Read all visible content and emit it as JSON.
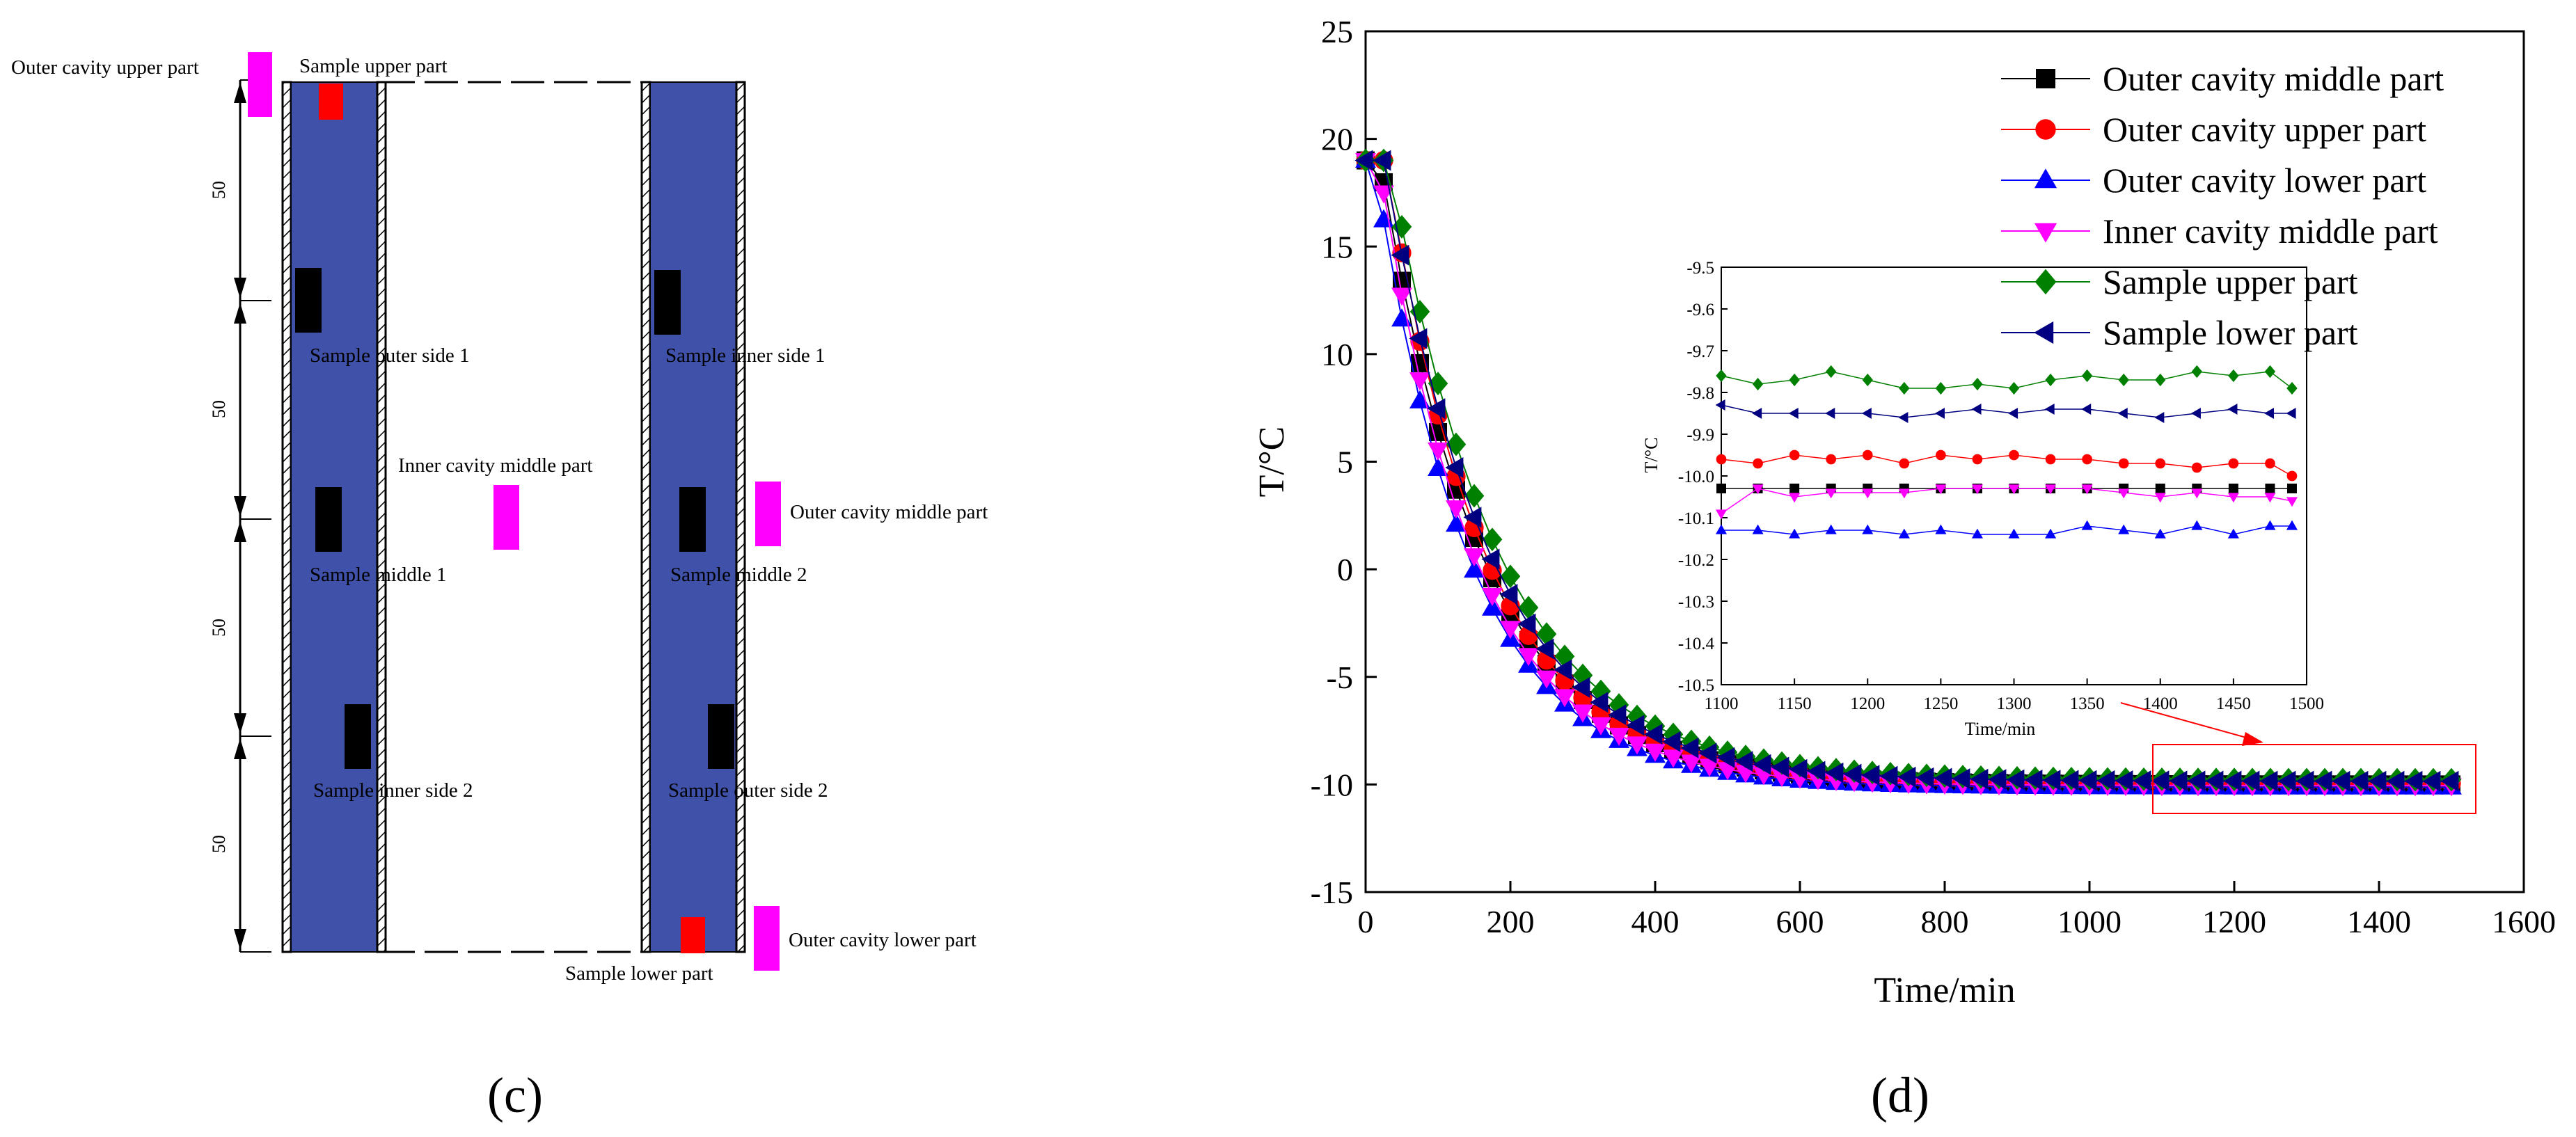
{
  "panel_c": {
    "caption": "(c)",
    "dim_labels": [
      "50",
      "50",
      "50",
      "50"
    ],
    "labels": {
      "outer_upper": "Outer cavity upper part",
      "sample_upper": "Sample upper part",
      "sample_outer_1": "Sample outer side 1",
      "sample_inner_1": "Sample inner side 1",
      "inner_middle": "Inner cavity middle part",
      "outer_middle": "Outer cavity middle part",
      "sample_middle_1": "Sample middle 1",
      "sample_middle_2": "Sample middle 2",
      "sample_inner_2": "Sample inner side 2",
      "sample_outer_2": "Sample outer side 2",
      "outer_lower": "Outer cavity lower part",
      "sample_lower": "Sample lower part"
    },
    "colors": {
      "sample_bar": "#3F51A8",
      "marker_magenta": "#FF00FF",
      "marker_red": "#FF0000",
      "sensor_black": "#000000"
    }
  },
  "panel_d": {
    "caption": "(d)"
  },
  "chart_data": [
    {
      "type": "line",
      "title": "",
      "xlabel": "Time/min",
      "ylabel": "T/°C",
      "xlim": [
        0,
        1600
      ],
      "ylim": [
        -15,
        25
      ],
      "xticks": [
        0,
        200,
        400,
        600,
        800,
        1000,
        1200,
        1400,
        1600
      ],
      "yticks": [
        -15,
        -10,
        -5,
        0,
        5,
        10,
        15,
        20,
        25
      ],
      "legend_position": "top-right",
      "x_step": 25,
      "x_max": 1500,
      "series": [
        {
          "name": "Outer cavity middle part",
          "color": "#000000",
          "marker": "square",
          "T0": 19.0,
          "Tinf": -10.0,
          "tau": 140,
          "lag": 20
        },
        {
          "name": "Outer cavity upper part",
          "color": "#FF0000",
          "marker": "circle",
          "T0": 19.0,
          "Tinf": -9.95,
          "tau": 137,
          "lag": 28
        },
        {
          "name": "Outer cavity lower part",
          "color": "#0000FF",
          "marker": "triangle-up",
          "T0": 19.0,
          "Tinf": -10.13,
          "tau": 130,
          "lag": 12
        },
        {
          "name": "Inner cavity middle part",
          "color": "#FF00FF",
          "marker": "triangle-down",
          "T0": 19.0,
          "Tinf": -10.05,
          "tau": 132,
          "lag": 18
        },
        {
          "name": "Sample upper part",
          "color": "#008000",
          "marker": "diamond",
          "T0": 19.0,
          "Tinf": -9.78,
          "tau": 150,
          "lag": 33
        },
        {
          "name": "Sample lower part",
          "color": "#000080",
          "marker": "triangle-left",
          "T0": 19.0,
          "Tinf": -9.85,
          "tau": 145,
          "lag": 26
        }
      ]
    },
    {
      "type": "line",
      "title": "",
      "xlabel": "Time/min",
      "ylabel": "T/°C",
      "xlim": [
        1100,
        1500
      ],
      "ylim": [
        -10.5,
        -9.5
      ],
      "xticks": [
        1100,
        1150,
        1200,
        1250,
        1300,
        1350,
        1400,
        1450,
        1500
      ],
      "yticks": [
        -10.5,
        -10.4,
        -10.3,
        -10.2,
        -10.1,
        -10.0,
        -9.9,
        -9.8,
        -9.7,
        -9.6,
        -9.5
      ],
      "x": [
        1100,
        1125,
        1150,
        1175,
        1200,
        1225,
        1250,
        1275,
        1300,
        1325,
        1350,
        1375,
        1400,
        1425,
        1450,
        1475,
        1490
      ],
      "series": [
        {
          "name": "Outer cavity middle part",
          "color": "#000000",
          "marker": "square",
          "values": [
            -10.03,
            -10.03,
            -10.03,
            -10.03,
            -10.03,
            -10.03,
            -10.03,
            -10.03,
            -10.03,
            -10.03,
            -10.03,
            -10.03,
            -10.03,
            -10.03,
            -10.03,
            -10.03,
            -10.03
          ]
        },
        {
          "name": "Outer cavity upper part",
          "color": "#FF0000",
          "marker": "circle",
          "values": [
            -9.96,
            -9.97,
            -9.95,
            -9.96,
            -9.95,
            -9.97,
            -9.95,
            -9.96,
            -9.95,
            -9.96,
            -9.96,
            -9.97,
            -9.97,
            -9.98,
            -9.97,
            -9.97,
            -10.0
          ]
        },
        {
          "name": "Outer cavity lower part",
          "color": "#0000FF",
          "marker": "triangle-up",
          "values": [
            -10.13,
            -10.13,
            -10.14,
            -10.13,
            -10.13,
            -10.14,
            -10.13,
            -10.14,
            -10.14,
            -10.14,
            -10.12,
            -10.13,
            -10.14,
            -10.12,
            -10.14,
            -10.12,
            -10.12
          ]
        },
        {
          "name": "Inner cavity middle part",
          "color": "#FF00FF",
          "marker": "triangle-down",
          "values": [
            -10.09,
            -10.03,
            -10.05,
            -10.04,
            -10.04,
            -10.04,
            -10.03,
            -10.03,
            -10.03,
            -10.03,
            -10.03,
            -10.04,
            -10.05,
            -10.04,
            -10.05,
            -10.05,
            -10.06
          ]
        },
        {
          "name": "Sample upper part",
          "color": "#008000",
          "marker": "diamond",
          "values": [
            -9.76,
            -9.78,
            -9.77,
            -9.75,
            -9.77,
            -9.79,
            -9.79,
            -9.78,
            -9.79,
            -9.77,
            -9.76,
            -9.77,
            -9.77,
            -9.75,
            -9.76,
            -9.75,
            -9.79
          ]
        },
        {
          "name": "Sample lower part",
          "color": "#000080",
          "marker": "triangle-left",
          "values": [
            -9.83,
            -9.85,
            -9.85,
            -9.85,
            -9.85,
            -9.86,
            -9.85,
            -9.84,
            -9.85,
            -9.84,
            -9.84,
            -9.85,
            -9.86,
            -9.85,
            -9.84,
            -9.85,
            -9.85
          ]
        }
      ]
    }
  ]
}
